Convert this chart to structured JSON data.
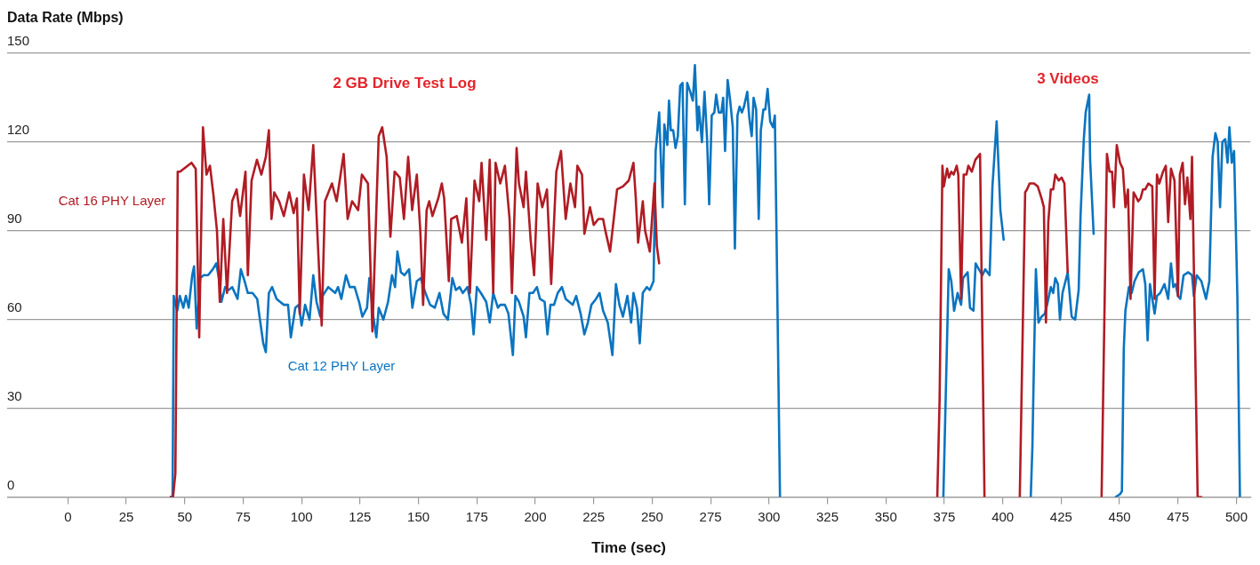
{
  "chart_data": {
    "type": "line",
    "xlabel": "Time (sec)",
    "ylabel": "Data Rate (Mbps)",
    "xlim": [
      -26,
      506
    ],
    "xticks": [
      0,
      25,
      50,
      75,
      100,
      125,
      150,
      175,
      200,
      225,
      250,
      275,
      300,
      325,
      350,
      375,
      400,
      425,
      450,
      475,
      500
    ],
    "ylim": [
      0,
      150
    ],
    "yticks": [
      0,
      30,
      60,
      90,
      120,
      150
    ],
    "grid": "y",
    "legend": false,
    "marker": "none",
    "line_style": "solid",
    "annotations": [
      "2 GB Drive Test Log",
      "3 Videos"
    ],
    "series": [
      {
        "name": "Cat 16 PHY Layer",
        "color": "#b01c24",
        "x": [
          44,
          45,
          46,
          47,
          48,
          52.9,
          54.7,
          56.2,
          57.8,
          59.3,
          60.8,
          62.3,
          63.8,
          65,
          66.5,
          68.1,
          70.3,
          72.2,
          73.7,
          76,
          77,
          78.6,
          80.9,
          82.8,
          84.7,
          86,
          87.1,
          88.3,
          90.4,
          92.4,
          94.7,
          96.6,
          98,
          99.2,
          101,
          103,
          105,
          108.6,
          110,
          113,
          115,
          118,
          119.7,
          121.6,
          124.2,
          125.8,
          128.4,
          130.3,
          133,
          134.5,
          136.4,
          138,
          139.8,
          142,
          143.8,
          145.6,
          147.3,
          149.3,
          150.8,
          152,
          153.5,
          154.6,
          156,
          158.5,
          160,
          161,
          163,
          164,
          166.4,
          168.6,
          170.5,
          172,
          174,
          176,
          177,
          179,
          180.5,
          182,
          183,
          185,
          187,
          189,
          190,
          192,
          193,
          195,
          196,
          198,
          199.5,
          201,
          203,
          205,
          206.8,
          209,
          211,
          213,
          215,
          217,
          218,
          220,
          221,
          223.4,
          225,
          227,
          229,
          230,
          232,
          235,
          237.5,
          240,
          242,
          243,
          244,
          246,
          247,
          249,
          251,
          252,
          253,
          254,
          372,
          373,
          374.2,
          374.8,
          376.2,
          377,
          378,
          379,
          380.3,
          381,
          382.2,
          383.3,
          384.5,
          385.3,
          386.8,
          388.3,
          390.3,
          392.2,
          393,
          407.3,
          409.6,
          410.4,
          411.5,
          413.4,
          415,
          416.6,
          417.6,
          418.5,
          419.5,
          420.6,
          421.6,
          422.5,
          424,
          425.2,
          426.4,
          427.8,
          428.5,
          442.3,
          444.6,
          445.7,
          446.8,
          447.6,
          448.8,
          450.2,
          451.4,
          452.5,
          453.6,
          454.7,
          456,
          456.7,
          458,
          459,
          460,
          461,
          462.3,
          464,
          465,
          466,
          467,
          468.6,
          469.8,
          470.8,
          472,
          473.5,
          475,
          475.8,
          477,
          478,
          479,
          480.3,
          481,
          482.2,
          483.4,
          485
        ],
        "values": [
          0,
          0,
          8,
          110,
          110,
          113,
          111,
          54,
          125,
          109,
          112,
          102,
          90,
          66,
          94,
          69,
          100,
          104,
          95,
          110,
          75,
          107,
          114,
          109,
          115,
          124,
          94,
          103,
          100,
          95,
          103,
          96,
          101,
          62,
          109,
          97,
          119,
          58,
          100,
          106,
          100,
          116,
          94,
          100,
          97,
          109,
          106,
          56,
          122,
          125,
          115,
          88,
          110,
          108,
          94,
          115,
          97,
          109,
          90,
          65,
          97,
          100,
          95,
          101,
          106,
          101,
          73,
          94,
          95,
          86,
          101,
          69,
          107,
          100,
          113,
          87,
          114,
          69,
          113,
          106,
          112,
          94,
          69,
          118,
          106,
          98,
          110,
          87,
          75,
          106,
          98,
          104,
          72,
          110,
          117,
          94,
          106,
          98,
          112,
          109,
          89,
          98,
          92,
          94,
          94,
          90,
          83,
          104,
          105,
          107,
          113,
          101,
          86,
          100,
          90,
          83,
          106,
          85,
          79,
          null,
          0,
          33,
          112,
          105,
          111,
          108,
          110,
          109,
          112,
          109,
          67,
          109,
          109,
          112,
          110,
          114,
          116,
          0,
          null,
          0,
          103,
          104,
          106,
          106,
          105,
          101,
          98,
          59,
          93,
          104,
          104,
          109,
          107,
          108,
          106,
          76,
          null,
          0,
          116,
          110,
          110,
          98,
          119,
          113,
          111,
          98,
          104,
          67,
          103,
          102,
          100,
          101,
          104,
          104,
          106,
          105,
          67,
          109,
          106,
          110,
          112,
          93,
          111,
          107,
          68,
          109,
          113,
          99,
          108,
          94,
          115,
          58,
          0,
          0
        ]
      },
      {
        "name": "Cat 12 PHY Layer",
        "color": "#0a74c0",
        "x": [
          44,
          44.8,
          45.3,
          46.8,
          47.9,
          49.4,
          50.5,
          51.7,
          53.2,
          54,
          55.1,
          56.6,
          58.1,
          60,
          62,
          63.5,
          64.6,
          65.7,
          67.3,
          68.8,
          70.3,
          72.6,
          74,
          75.6,
          77,
          79,
          81,
          82,
          83.6,
          84.7,
          86,
          87.4,
          89.3,
          90.8,
          92.4,
          94.2,
          95.4,
          97.3,
          98.8,
          100,
          101.5,
          103.4,
          105,
          106.4,
          108,
          109,
          111.4,
          112.9,
          114.4,
          115.6,
          117,
          119,
          120.6,
          122.7,
          124.6,
          126,
          128,
          129,
          130.7,
          132,
          133,
          135,
          137,
          138.7,
          140,
          141,
          142.5,
          144,
          146,
          147.4,
          149.3,
          151,
          153,
          155,
          157,
          159,
          160.7,
          162.6,
          164.5,
          166,
          167.6,
          169,
          171,
          172.5,
          173.6,
          175,
          176.7,
          179,
          180.5,
          182,
          184,
          185,
          187,
          188.5,
          190.4,
          191.5,
          193,
          195,
          196,
          197.5,
          199,
          200.7,
          202,
          204,
          205.2,
          206.5,
          208,
          209.6,
          211.4,
          213,
          214.5,
          216,
          217.5,
          219.4,
          221,
          222.5,
          224,
          226,
          227.5,
          229,
          231,
          233,
          234.5,
          236,
          237.5,
          239.4,
          241,
          242,
          243.5,
          244.7,
          246,
          247.7,
          249,
          250.6,
          251.5,
          253,
          254.5,
          255.2,
          256.5,
          257.2,
          258,
          259,
          260,
          261,
          262,
          263,
          264,
          265,
          266.3,
          267.4,
          268.3,
          269.4,
          270,
          271.3,
          272.4,
          273.5,
          274.4,
          275.5,
          276.6,
          277.4,
          278.5,
          279.6,
          280.4,
          281.2,
          282.3,
          283.4,
          284.5,
          285.4,
          286.5,
          287.4,
          288.4,
          289.3,
          290.7,
          291.6,
          292.6,
          293.4,
          294.5,
          295.6,
          296.5,
          297.6,
          298.4,
          299.4,
          300.5,
          301.7,
          302.5,
          303.2,
          304.7,
          305.5,
          374.6,
          376.9,
          378,
          379.2,
          380.7,
          382.2,
          383,
          385,
          386,
          387.5,
          388.4,
          389.8,
          391.3,
          392.5,
          394.4,
          395.6,
          397.4,
          399,
          400.4,
          401,
          412,
          412.7,
          413.4,
          414.2,
          415.3,
          416.6,
          418,
          419,
          420.6,
          421.6,
          422.5,
          423.6,
          424.5,
          425.6,
          427.8,
          429.5,
          431,
          432.5,
          433.3,
          434.7,
          435.5,
          437,
          437.4,
          438.9,
          439.5,
          448.3,
          450.2,
          451,
          451.8,
          452.5,
          454,
          455.2,
          456.4,
          458.2,
          460,
          461,
          462,
          463,
          464,
          465,
          466,
          467.4,
          469.2,
          470.8,
          472,
          473,
          474,
          475,
          476,
          477.4,
          479.4,
          481,
          481.8,
          483,
          485,
          487,
          488.4,
          489.8,
          491,
          492,
          493,
          494,
          495.2,
          496.2,
          497,
          498,
          499,
          500.4,
          501.5
        ],
        "values": [
          0,
          0,
          68,
          63,
          68,
          64,
          68,
          64,
          75,
          78,
          57,
          74,
          75,
          75,
          77,
          79,
          74,
          66,
          71,
          70,
          71,
          67,
          77,
          73,
          69,
          69,
          67,
          61,
          52,
          49,
          69,
          71,
          67,
          66,
          65,
          65,
          54,
          64,
          65,
          58,
          65,
          60,
          75,
          66,
          61,
          68,
          71,
          70,
          69,
          71,
          67,
          75,
          71,
          71,
          66,
          61,
          64,
          74,
          61,
          54,
          64,
          60,
          66,
          75,
          71,
          83,
          76,
          75,
          77,
          64,
          73,
          74,
          69,
          65,
          64,
          69,
          62,
          60,
          74,
          70,
          71,
          69,
          71,
          65,
          55,
          71,
          69,
          66,
          59,
          69,
          64,
          65,
          65,
          62,
          48,
          68,
          66,
          61,
          54,
          69,
          69,
          71,
          67,
          66,
          55,
          65,
          65,
          69,
          71,
          67,
          66,
          65,
          68,
          62,
          55,
          59,
          65,
          67,
          69,
          63,
          59,
          48,
          72,
          65,
          61,
          68,
          59,
          69,
          64,
          52,
          69,
          71,
          70,
          73,
          117,
          130,
          98,
          126,
          119,
          134,
          124,
          124,
          118,
          122,
          139,
          140,
          99,
          140,
          137,
          134,
          146,
          124,
          132,
          120,
          137,
          121,
          99,
          129,
          130,
          136,
          130,
          130,
          135,
          117,
          141,
          134,
          125,
          84,
          129,
          132,
          130,
          132,
          137,
          128,
          122,
          135,
          131,
          94,
          124,
          131,
          131,
          138,
          127,
          125,
          129,
          90,
          0,
          null,
          0,
          77,
          73,
          63,
          69,
          65,
          74,
          76,
          64,
          63,
          79,
          77,
          75,
          77,
          75,
          105,
          127,
          97,
          87,
          null,
          0,
          17,
          47,
          77,
          59,
          61,
          62,
          65,
          71,
          69,
          74,
          72,
          60,
          69,
          76,
          61,
          60,
          70,
          95,
          121,
          130,
          136,
          114,
          89,
          null,
          0,
          1,
          2,
          50,
          63,
          71,
          69,
          73,
          76,
          77,
          72,
          53,
          72,
          67,
          62,
          68,
          69,
          72,
          67,
          79,
          71,
          72,
          68,
          67,
          75,
          76,
          75,
          68,
          75,
          73,
          67,
          73,
          115,
          123,
          120,
          98,
          120,
          121,
          113,
          125,
          113,
          117,
          68,
          0
        ]
      }
    ]
  }
}
